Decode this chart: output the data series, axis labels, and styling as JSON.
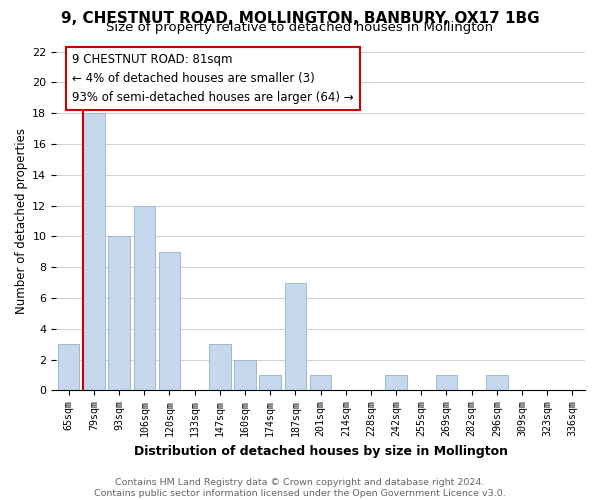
{
  "title": "9, CHESTNUT ROAD, MOLLINGTON, BANBURY, OX17 1BG",
  "subtitle": "Size of property relative to detached houses in Mollington",
  "xlabel": "Distribution of detached houses by size in Mollington",
  "ylabel": "Number of detached properties",
  "bins": [
    "65sqm",
    "79sqm",
    "93sqm",
    "106sqm",
    "120sqm",
    "133sqm",
    "147sqm",
    "160sqm",
    "174sqm",
    "187sqm",
    "201sqm",
    "214sqm",
    "228sqm",
    "242sqm",
    "255sqm",
    "269sqm",
    "282sqm",
    "296sqm",
    "309sqm",
    "323sqm",
    "336sqm"
  ],
  "values": [
    3,
    18,
    10,
    12,
    9,
    0,
    3,
    2,
    1,
    7,
    1,
    0,
    0,
    1,
    0,
    1,
    0,
    1,
    0,
    0,
    0
  ],
  "bar_color": "#c5d8ed",
  "bar_edge_color": "#a0b8d0",
  "vline_x_index": 1,
  "vline_color": "#cc0000",
  "annotation_line1": "9 CHESTNUT ROAD: 81sqm",
  "annotation_line2": "← 4% of detached houses are smaller (3)",
  "annotation_line3": "93% of semi-detached houses are larger (64) →",
  "ylim": [
    0,
    22
  ],
  "yticks": [
    0,
    2,
    4,
    6,
    8,
    10,
    12,
    14,
    16,
    18,
    20,
    22
  ],
  "background_color": "#ffffff",
  "grid_color": "#d0d0d0",
  "footer_text": "Contains HM Land Registry data © Crown copyright and database right 2024.\nContains public sector information licensed under the Open Government Licence v3.0.",
  "title_fontsize": 11,
  "subtitle_fontsize": 9.5,
  "xlabel_fontsize": 9,
  "ylabel_fontsize": 8.5,
  "annotation_fontsize": 8.5,
  "footer_fontsize": 6.8
}
